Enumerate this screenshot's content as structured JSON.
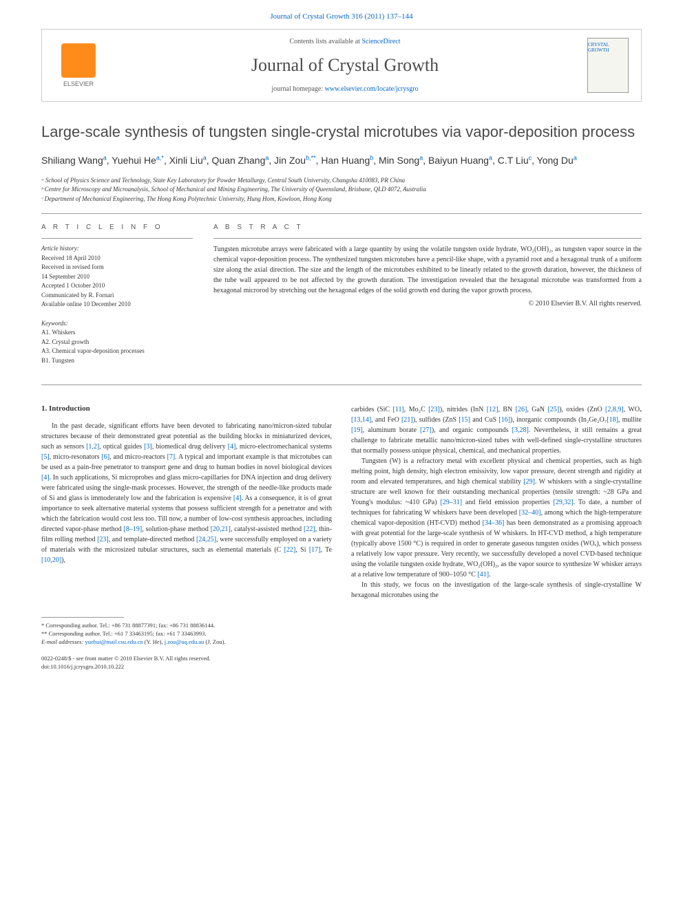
{
  "header": {
    "citation": "Journal of Crystal Growth 316 (2011) 137–144"
  },
  "journalbox": {
    "contents_prefix": "Contents lists available at ",
    "contents_link": "ScienceDirect",
    "journal_name": "Journal of Crystal Growth",
    "homepage_prefix": "journal homepage: ",
    "homepage_url": "www.elsevier.com/locate/jcrysgro",
    "publisher": "ELSEVIER",
    "cover_label": "CRYSTAL GROWTH"
  },
  "article": {
    "title": "Large-scale synthesis of tungsten single-crystal microtubes via vapor-deposition process",
    "authors_html": "Shiliang Wang<sup>a</sup>, Yuehui He<sup>a,*</sup>, Xinli Liu<sup>a</sup>, Quan Zhang<sup>a</sup>, Jin Zou<sup>b,**</sup>, Han Huang<sup>b</sup>, Min Song<sup>a</sup>, Baiyun Huang<sup>a</sup>, C.T Liu<sup>c</sup>, Yong Du<sup>a</sup>",
    "affiliations": [
      "ᵃ School of Physics Science and Technology, State Key Laboratory for Powder Metallurgy, Central South University, Changsha 410083, PR China",
      "ᵇ Centre for Microscopy and Microanalysis, School of Mechanical and Mining Engineering, The University of Queensland, Brisbane, QLD 4072, Australia",
      "ᶜ Department of Mechanical Engineering, The Hong Kong Polytechnic University, Hung Hom, Kowloon, Hong Kong"
    ]
  },
  "info": {
    "heading": "A R T I C L E   I N F O",
    "history_label": "Article history:",
    "history": [
      "Received 18 April 2010",
      "Received in revised form",
      "14 September 2010",
      "Accepted 1 October 2010",
      "Communicated by R. Fornari",
      "Available online 10 December 2010"
    ],
    "keywords_label": "Keywords:",
    "keywords": [
      "A1. Whiskers",
      "A2. Crystal growth",
      "A3. Chemical vapor-deposition processes",
      "B1. Tungsten"
    ]
  },
  "abstract": {
    "heading": "A B S T R A C T",
    "text": "Tungsten microtube arrays were fabricated with a large quantity by using the volatile tungsten oxide hydrate, WO₂(OH)₂, as tungsten vapor source in the chemical vapor-deposition process. The synthesized tungsten microtubes have a pencil-like shape, with a pyramid root and a hexagonal trunk of a uniform size along the axial direction. The size and the length of the microtubes exhibited to be linearly related to the growth duration, however, the thickness of the tube wall appeared to be not affected by the growth duration. The investigation revealed that the hexagonal microtube was transformed from a hexagonal microrod by stretching out the hexagonal edges of the solid growth end during the vapor growth process.",
    "copyright": "© 2010 Elsevier B.V. All rights reserved."
  },
  "body": {
    "section1_heading": "1. Introduction",
    "col1_p1": "In the past decade, significant efforts have been devoted to fabricating nano/micron-sized tubular structures because of their demonstrated great potential as the building blocks in miniaturized devices, such as sensors [1,2], optical guides [3], biomedical drug delivery [4], micro-electromechanical systems [5], micro-resonators [6], and micro-reactors [7]. A typical and important example is that microtubes can be used as a pain-free penetrator to transport gene and drug to human bodies in novel biological devices [4]. In such applications, Si microprobes and glass micro-capillaries for DNA injection and drug delivery were fabricated using the single-mask processes. However, the strength of the needle-like products made of Si and glass is immoderately low and the fabrication is expensive [4]. As a consequence, it is of great importance to seek alternative material systems that possess sufficient strength for a penetrator and with which the fabrication would cost less too. Till now, a number of low-cost synthesis approaches, including directed vapor-phase method [8–19], solution-phase method [20,21], catalyst-assisted method [22], thin-film rolling method [23], and template-directed method [24,25], were successfully employed on a variety of materials with the microsized tubular structures, such as elemental materials (C [22], Si [17], Te [10,20]),",
    "col2_p1": "carbides (SiC [11], Mo₂C [23]), nitrides (InN [12], BN [26], GaN [25]), oxides (ZnO [2,8,9], WOₓ [13,14], and FeO [21]), sulfides (ZnS [15] and CuS [16]), inorganic compounds (In₂Ge₂O₇[18], mullite [19], aluminum borate [27]), and organic compounds [3,28]. Nevertheless, it still remains a great challenge to fabricate metallic nano/micron-sized tubes with well-defined single-crystalline structures that normally possess unique physical, chemical, and mechanical properties.",
    "col2_p2": "Tungsten (W) is a refractory metal with excellent physical and chemical properties, such as high melting point, high density, high electron emissivity, low vapor pressure, decent strength and rigidity at room and elevated temperatures, and high chemical stability [29]. W whiskers with a single-crystalline structure are well known for their outstanding mechanical properties (tensile strength: ~28 GPa and Young's modulus: ~410 GPa) [29–31] and field emission properties [29,32]. To date, a number of techniques for fabricating W whiskers have been developed [32–40], among which the high-temperature chemical vapor-deposition (HT-CVD) method [34–36] has been demonstrated as a promising approach with great potential for the large-scale synthesis of W whiskers. In HT-CVD method, a high temperature (typically above 1500 °C) is required in order to generate gaseous tungsten oxides (WOₓ), which possess a relatively low vapor pressure. Very recently, we successfully developed a novel CVD-based technique using the volatile tungsten oxide hydrate, WO₂(OH)₂, as the vapor source to synthesize W whisker arrays at a relative low temperature of 900–1050 °C [41].",
    "col2_p3": "In this study, we focus on the investigation of the large-scale synthesis of single-crystalline W hexagonal microtubes using the"
  },
  "footnotes": {
    "f1": "* Corresponding author. Tel.: +86 731 88877391; fax: +86 731 88836144.",
    "f2": "** Corresponding author. Tel.: +61 7 33463195; fax: +61 7 33463993.",
    "emails_label": "E-mail addresses: ",
    "email1": "yuehui@mail.csu.edu.cn",
    "email1_who": " (Y. He), ",
    "email2": "j.zou@uq.edu.au",
    "email2_who": " (J. Zou)."
  },
  "doi": {
    "line1": "0022-0248/$ - see front matter © 2010 Elsevier B.V. All rights reserved.",
    "line2": "doi:10.1016/j.jcrysgro.2010.10.222"
  },
  "colors": {
    "link": "#0066cc",
    "text": "#333333",
    "border": "#cccccc",
    "elsevier_orange": "#ff8c1a"
  }
}
